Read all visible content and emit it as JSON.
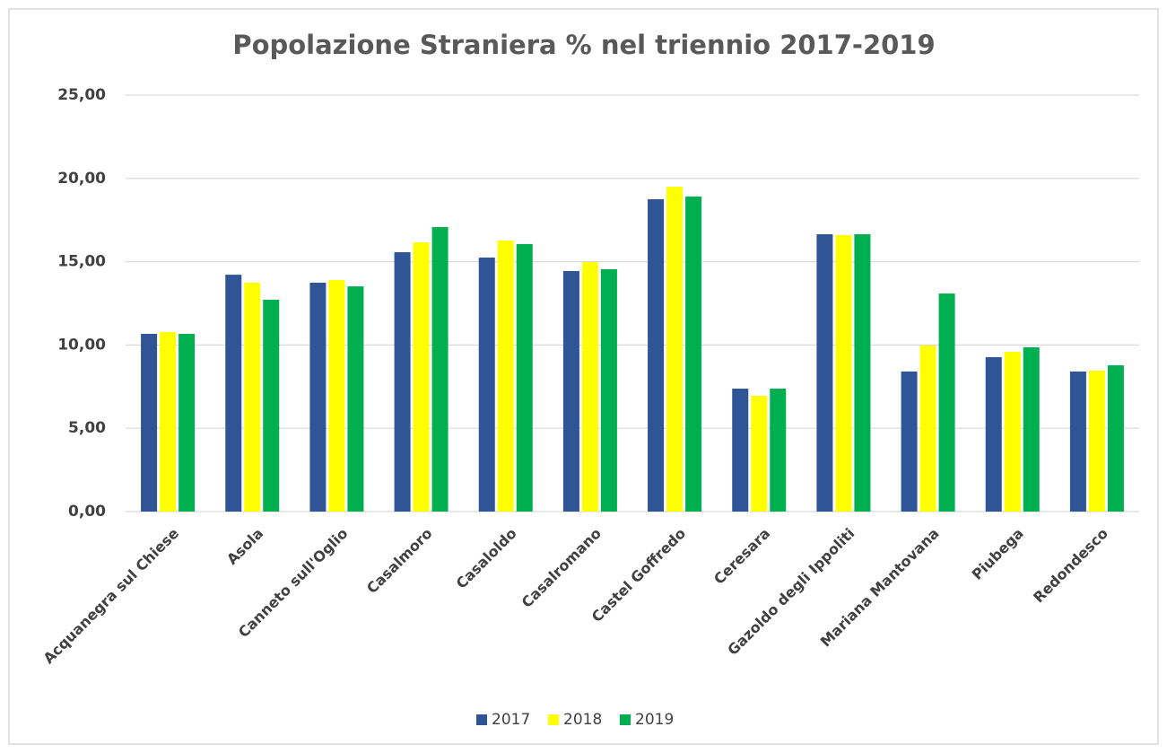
{
  "chart_data": {
    "type": "bar",
    "title": "Popolazione Straniera % nel triennio 2017-2019",
    "categories": [
      "Acquanegra sul Chiese",
      "Asola",
      "Canneto sull'Oglio",
      "Casalmoro",
      "Casaloldo",
      "Casalromano",
      "Castel Goffredo",
      "Ceresara",
      "Gazoldo degli Ippoliti",
      "Mariana Mantovana",
      "Piubega",
      "Redondesco"
    ],
    "series": [
      {
        "name": "2017",
        "color": "#2f5597",
        "values": [
          10.67,
          14.22,
          13.74,
          15.57,
          15.25,
          14.44,
          18.75,
          7.38,
          16.65,
          8.41,
          9.27,
          8.41
        ]
      },
      {
        "name": "2018",
        "color": "#ffff00",
        "values": [
          10.78,
          13.74,
          13.9,
          16.16,
          16.27,
          14.98,
          19.5,
          6.95,
          16.6,
          9.97,
          9.59,
          8.46
        ]
      },
      {
        "name": "2019",
        "color": "#00b050",
        "values": [
          10.67,
          12.72,
          13.52,
          17.08,
          16.06,
          14.55,
          18.91,
          7.38,
          16.65,
          13.09,
          9.86,
          8.78
        ]
      }
    ],
    "ylim": [
      0,
      25
    ],
    "yticks": [
      {
        "value": 0,
        "label": "0,00"
      },
      {
        "value": 5,
        "label": "5,00"
      },
      {
        "value": 10,
        "label": "10,00"
      },
      {
        "value": 15,
        "label": "15,00"
      },
      {
        "value": 20,
        "label": "20,00"
      },
      {
        "value": 25,
        "label": "25,00"
      }
    ],
    "grid": true,
    "legend": "bottom"
  }
}
